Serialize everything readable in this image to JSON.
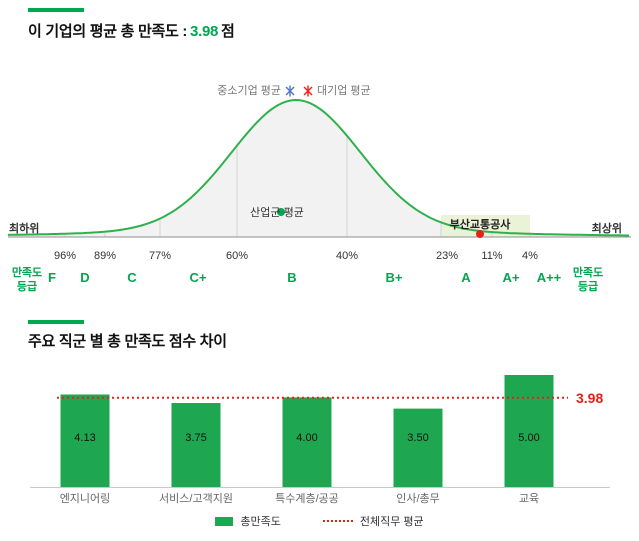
{
  "colors": {
    "accent_green": "#00a650",
    "curve_green": "#2eb14d",
    "bar_green": "#1fa650",
    "red": "#e8201a",
    "blue": "#4a74c9",
    "highlight_green": "#eaf2d8"
  },
  "header": {
    "title": "이 기업의 평균 총 만족도 :",
    "score": "3.98",
    "unit": "점"
  },
  "chart_data": [
    {
      "type": "area",
      "name": "satisfaction-grade-distribution",
      "legend": [
        {
          "label": "중소기업 평균",
          "marker": "asterisk",
          "color": "#4a74c9"
        },
        {
          "label": "대기업 평균",
          "marker": "asterisk",
          "color": "#e8201a"
        }
      ],
      "markers": [
        {
          "label": "산업군 평균",
          "marker": "dot",
          "color": "#00a650"
        },
        {
          "label": "부산교통공사",
          "marker": "dot",
          "color": "#e8201a"
        }
      ],
      "axis": {
        "left": "최하위",
        "right": "최상위",
        "grade_caption_line1": "만족도",
        "grade_caption_line2": "등급"
      },
      "percentile_ticks": [
        "96%",
        "89%",
        "77%",
        "60%",
        "40%",
        "23%",
        "11%",
        "4%"
      ],
      "grades": [
        "F",
        "D",
        "C",
        "C+",
        "B",
        "B+",
        "A",
        "A+",
        "A++"
      ],
      "company_score": 3.98,
      "highlighted_grade": "A"
    },
    {
      "type": "bar",
      "title": "주요 직군 별 총 만족도 점수 차이",
      "categories": [
        "엔지니어링",
        "서비스/고객지원",
        "특수계층/공공",
        "인사/총무",
        "교육"
      ],
      "values": [
        4.13,
        3.75,
        4.0,
        3.5,
        5.0
      ],
      "value_labels": [
        "4.13",
        "3.75",
        "4.00",
        "3.50",
        "5.00"
      ],
      "average_line": {
        "value": 3.98,
        "label": "3.98"
      },
      "ylim": [
        0,
        5.45
      ],
      "legend": [
        {
          "label": "총만족도",
          "swatch": "bar"
        },
        {
          "label": "전체직무 평균",
          "swatch": "dotted-line"
        }
      ]
    }
  ]
}
